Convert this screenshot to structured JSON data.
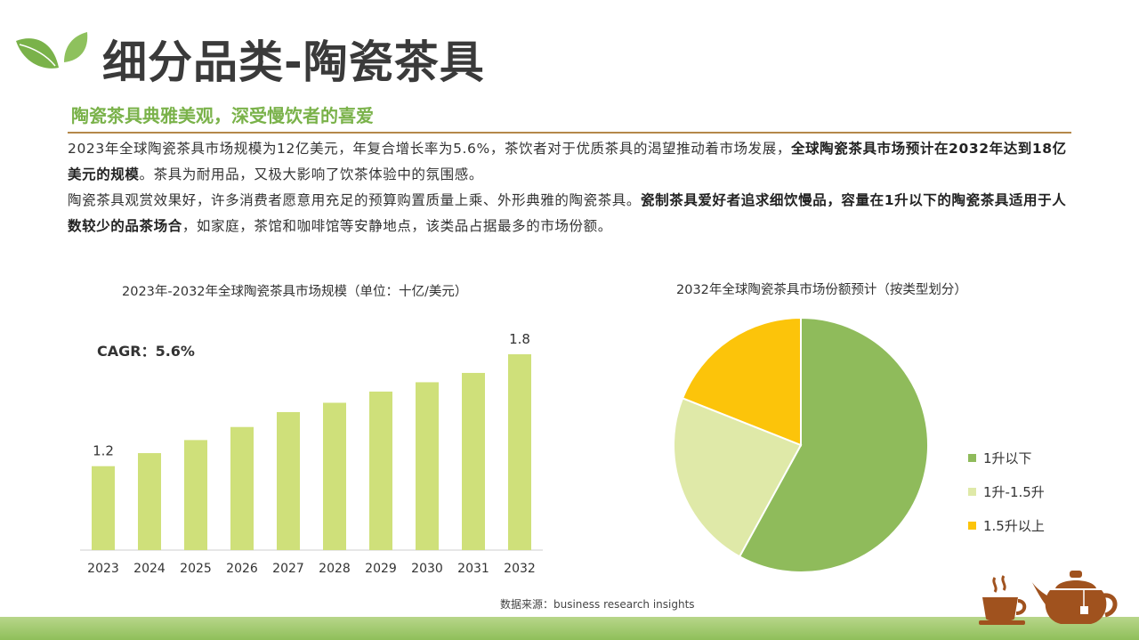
{
  "header": {
    "title": "细分品类-陶瓷茶具",
    "subtitle": "陶瓷茶具典雅美观，深受慢饮者的喜爱"
  },
  "body": {
    "p1_a": "2023年全球陶瓷茶具市场规模为12亿美元，年复合增长率为5.6%，茶饮者对于优质茶具的渴望推动着市场发展，",
    "p1_b": "全球陶瓷茶具市场预计在2032年达到18亿美元的规模",
    "p1_c": "。茶具为耐用品，又极大影响了饮茶体验中的氛围感。",
    "p2_a": "陶瓷茶具观赏效果好，许多消费者愿意用充足的预算购置质量上乘、外形典雅的陶瓷茶具。",
    "p2_b": "瓷制茶具爱好者追求细饮慢品，容量在1升以下的陶瓷茶具适用于人数较少的品茶场合",
    "p2_c": "，如家庭，茶馆和咖啡馆等安静地点，该类品占据最多的市场份额。"
  },
  "source": "数据来源：business research insights",
  "colors": {
    "accent_green": "#7ab24a",
    "bar": "#cfe07a",
    "rule": "#b5884a",
    "teapot": "#a0521e"
  },
  "chart_data": [
    {
      "type": "bar",
      "title": "2023年-2032年全球陶瓷茶具市场规模（单位：十亿/美元）",
      "annotation": "CAGR：5.6%",
      "categories": [
        "2023",
        "2024",
        "2025",
        "2026",
        "2027",
        "2028",
        "2029",
        "2030",
        "2031",
        "2032"
      ],
      "values": [
        1.2,
        1.27,
        1.34,
        1.41,
        1.49,
        1.54,
        1.6,
        1.65,
        1.7,
        1.8
      ],
      "data_labels": {
        "0": "1.2",
        "9": "1.8"
      },
      "ylim": [
        0.75,
        1.8
      ],
      "grid": false,
      "color": "#cfe07a"
    },
    {
      "type": "pie",
      "title": "2032年全球陶瓷茶具市场份额预计（按类型划分）",
      "labels": [
        "1升以下",
        "1升-1.5升",
        "1.5升以上"
      ],
      "values": [
        58,
        23,
        19
      ],
      "colors": [
        "#8fbb5b",
        "#dfe9a8",
        "#fcc40a"
      ],
      "legend": "right"
    }
  ]
}
